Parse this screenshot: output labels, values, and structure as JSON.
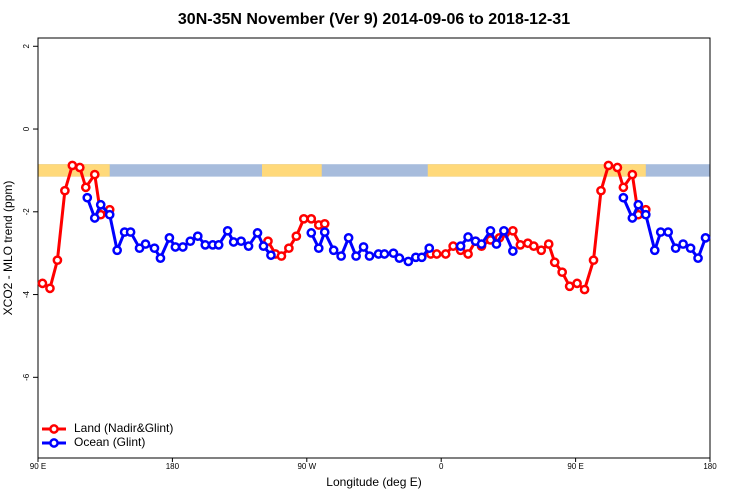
{
  "chart_data": {
    "type": "line",
    "title": "30N-35N November (Ver 9)   2014-09-06 to 2018-12-31",
    "x_label": "Longitude (deg E)",
    "y_label": "XCO2 - MLO trend (ppm)",
    "xlim": [
      90,
      540
    ],
    "ylim": [
      -7.95,
      2.2
    ],
    "xticks": [
      {
        "value": 90,
        "label": "90 E"
      },
      180,
      {
        "value": 270,
        "label": "90 W"
      },
      {
        "value": 360,
        "label": "0"
      },
      {
        "value": 450,
        "label": "90 E"
      },
      {
        "value": 540,
        "label": "180"
      }
    ],
    "yticks": [
      2,
      0,
      -2,
      -4,
      -6
    ],
    "legend": "bottomleft",
    "surface_band": {
      "ylim": [
        -1.15,
        -0.85
      ],
      "land": [
        [
          90,
          138
        ],
        [
          240,
          280
        ],
        [
          351,
          497
        ]
      ],
      "land_color": "#ffd97a",
      "ocean_color": "#a7bcdc"
    },
    "series": [
      {
        "name": "Land (Nadir&Glint)",
        "color": "#ff0000",
        "x": [
          93,
          98,
          103,
          108,
          113,
          118,
          122,
          128,
          132,
          138,
          null,
          244,
          249,
          253,
          258,
          263,
          268,
          273,
          278,
          282,
          null,
          353,
          357,
          363,
          368,
          373,
          378,
          383,
          387,
          393,
          399,
          403,
          408,
          413,
          418,
          422,
          427,
          432,
          436,
          441,
          446,
          451,
          456,
          462,
          467,
          472,
          478,
          482,
          488,
          492,
          497
        ],
        "values": [
          -3.73,
          -3.85,
          -3.17,
          -1.49,
          -0.88,
          -0.93,
          -1.41,
          -1.1,
          -2.07,
          -1.95,
          null,
          -2.71,
          -3.02,
          -3.07,
          -2.88,
          -2.59,
          -2.17,
          -2.17,
          -2.32,
          -2.29,
          null,
          -3.02,
          -3.02,
          -3.02,
          -2.83,
          -2.93,
          -3.02,
          -2.71,
          -2.83,
          -2.68,
          -2.63,
          -2.51,
          -2.46,
          -2.8,
          -2.76,
          -2.83,
          -2.93,
          -2.78,
          -3.22,
          -3.46,
          -3.8,
          -3.73,
          -3.88,
          -3.17,
          -1.49,
          -0.88,
          -0.93,
          -1.41,
          -1.1,
          -2.07,
          -1.95
        ]
      },
      {
        "name": "Ocean (Glint)",
        "color": "#0000ff",
        "x": [
          123,
          128,
          132,
          138,
          143,
          148,
          152,
          158,
          162,
          168,
          172,
          178,
          182,
          187,
          192,
          197,
          202,
          207,
          211,
          217,
          221,
          226,
          231,
          237,
          241,
          246,
          null,
          273,
          278,
          282,
          288,
          293,
          298,
          303,
          308,
          312,
          318,
          322,
          328,
          332,
          338,
          343,
          347,
          352,
          null,
          373,
          378,
          383,
          387,
          393,
          397,
          402,
          408,
          null,
          482,
          488,
          492,
          497,
          503,
          507,
          512,
          517,
          522,
          527,
          532,
          537
        ],
        "values": [
          -1.66,
          -2.15,
          -1.83,
          -2.07,
          -2.93,
          -2.49,
          -2.49,
          -2.88,
          -2.78,
          -2.88,
          -3.12,
          -2.63,
          -2.85,
          -2.85,
          -2.71,
          -2.59,
          -2.8,
          -2.8,
          -2.8,
          -2.46,
          -2.73,
          -2.71,
          -2.83,
          -2.51,
          -2.83,
          -3.05,
          null,
          -2.51,
          -2.88,
          -2.49,
          -2.93,
          -3.07,
          -2.63,
          -3.07,
          -2.85,
          -3.07,
          -3.02,
          -3.02,
          -3.0,
          -3.12,
          -3.2,
          -3.1,
          -3.1,
          -2.88,
          null,
          -2.83,
          -2.61,
          -2.71,
          -2.78,
          -2.46,
          -2.78,
          -2.46,
          -2.95,
          null,
          -1.66,
          -2.15,
          -1.83,
          -2.07,
          -2.93,
          -2.49,
          -2.49,
          -2.88,
          -2.78,
          -2.88,
          -3.12,
          -2.63
        ]
      }
    ]
  }
}
